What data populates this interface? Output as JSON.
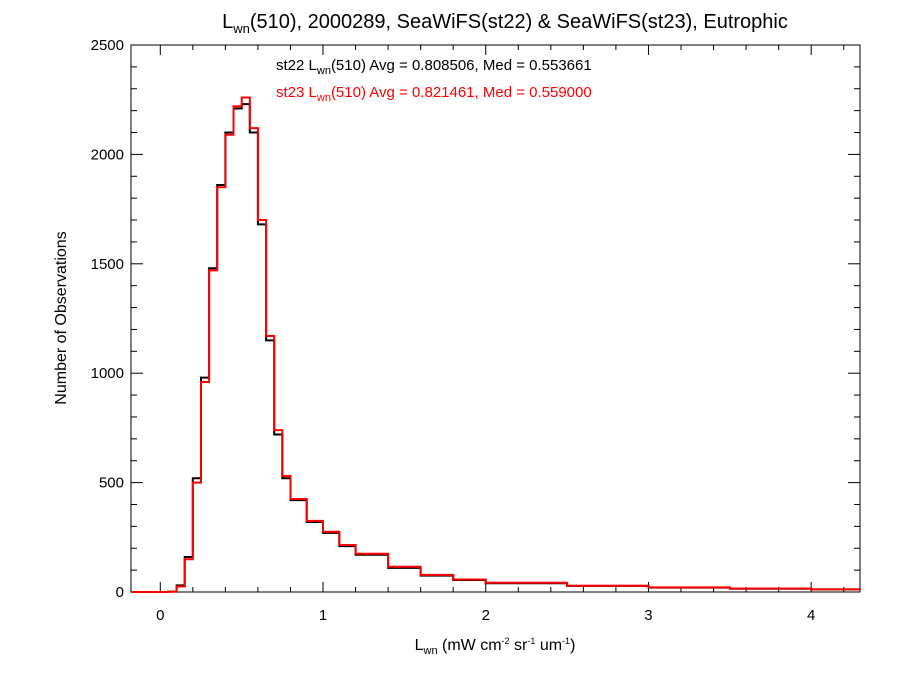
{
  "chart_data": {
    "type": "line",
    "title": {
      "pre": "L",
      "sub": "wn",
      "post": "(510), 2000289, SeaWiFS(st22) & SeaWiFS(st23), Eutrophic"
    },
    "xlabel": {
      "pre": "L",
      "sub": "wn",
      "units": " (mW cm",
      "s1": "-2",
      "m1": " sr",
      "s2": "-1",
      "m2": " um",
      "s3": "-1",
      "end": ")"
    },
    "ylabel": "Number of Observations",
    "xlim": [
      -0.18,
      4.3
    ],
    "ylim": [
      0,
      2500
    ],
    "x_ticks": [
      0,
      1,
      2,
      3,
      4
    ],
    "y_ticks": [
      0,
      500,
      1000,
      1500,
      2000,
      2500
    ],
    "grid": false,
    "annotations": [
      {
        "color": "#000000",
        "pre": "st22 L",
        "sub": "wn",
        "post": "(510) Avg = 0.808506, Med = 0.553661"
      },
      {
        "color": "#ff0000",
        "pre": "st23 L",
        "sub": "wn",
        "post": "(510) Avg = 0.821461, Med = 0.559000"
      }
    ],
    "series": [
      {
        "label": "st22",
        "color": "#000000",
        "x": [
          -0.18,
          0.05,
          0.1,
          0.15,
          0.2,
          0.25,
          0.3,
          0.35,
          0.4,
          0.45,
          0.5,
          0.55,
          0.6,
          0.65,
          0.7,
          0.75,
          0.8,
          0.9,
          1.0,
          1.1,
          1.2,
          1.4,
          1.6,
          1.8,
          2.0,
          2.5,
          3.0,
          3.5,
          4.0,
          4.3
        ],
        "y": [
          0,
          2,
          30,
          160,
          520,
          980,
          1480,
          1860,
          2100,
          2210,
          2230,
          2100,
          1680,
          1150,
          720,
          520,
          420,
          320,
          270,
          210,
          170,
          110,
          75,
          55,
          40,
          28,
          20,
          15,
          12,
          10
        ]
      },
      {
        "label": "st23",
        "color": "#ff0000",
        "x": [
          -0.18,
          0.05,
          0.1,
          0.15,
          0.2,
          0.25,
          0.3,
          0.35,
          0.4,
          0.45,
          0.5,
          0.55,
          0.6,
          0.65,
          0.7,
          0.75,
          0.8,
          0.9,
          1.0,
          1.1,
          1.2,
          1.4,
          1.6,
          1.8,
          2.0,
          2.5,
          3.0,
          3.5,
          4.0,
          4.3
        ],
        "y": [
          0,
          2,
          25,
          150,
          500,
          960,
          1470,
          1850,
          2090,
          2220,
          2260,
          2120,
          1700,
          1170,
          740,
          530,
          425,
          325,
          275,
          215,
          175,
          115,
          78,
          57,
          42,
          29,
          21,
          16,
          12,
          10
        ]
      }
    ]
  }
}
